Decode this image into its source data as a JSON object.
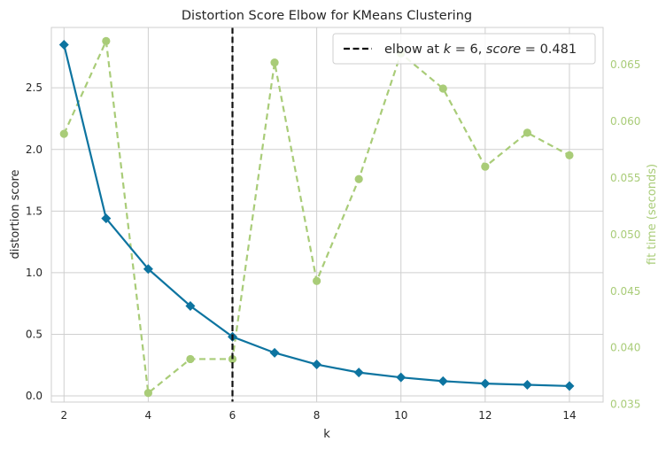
{
  "chart_data": {
    "type": "line",
    "title": "Distortion Score Elbow for KMeans Clustering",
    "xlabel": "k",
    "ylabel": "distortion score",
    "y2label": "fit time (seconds)",
    "x": [
      2,
      3,
      4,
      5,
      6,
      7,
      8,
      9,
      10,
      11,
      12,
      13,
      14
    ],
    "xlim": [
      1.7,
      14.8
    ],
    "ylim": [
      -0.05,
      2.99
    ],
    "y2lim": [
      0.0352,
      0.0683
    ],
    "xticks": [
      "2",
      "4",
      "6",
      "8",
      "10",
      "12",
      "14"
    ],
    "yticks": [
      "0.0",
      "0.5",
      "1.0",
      "1.5",
      "2.0",
      "2.5"
    ],
    "y2ticks": [
      "0.035",
      "0.040",
      "0.045",
      "0.050",
      "0.055",
      "0.060",
      "0.065"
    ],
    "grid": true,
    "legend_position": "top-right",
    "series": [
      {
        "axis": "left",
        "color": "#0d74a0",
        "marker": "diamond",
        "values": [
          2.85,
          1.44,
          1.03,
          0.73,
          0.48,
          0.35,
          0.255,
          0.19,
          0.15,
          0.12,
          0.1,
          0.09,
          0.08
        ]
      },
      {
        "axis": "right",
        "color": "#a9cc78",
        "marker": "circle",
        "dashed": true,
        "values": [
          0.0589,
          0.0671,
          0.036,
          0.039,
          0.039,
          0.0652,
          0.0459,
          0.0549,
          0.066,
          0.0629,
          0.056,
          0.059,
          0.057
        ]
      }
    ],
    "elbow": {
      "k": 6,
      "legend_prefix": "elbow at ",
      "k_symbol": "k",
      "equals": " = ",
      "k_value": "6",
      "separator": ", ",
      "score_symbol": "score",
      "score_value": "0.481",
      "color": "#111111"
    }
  }
}
